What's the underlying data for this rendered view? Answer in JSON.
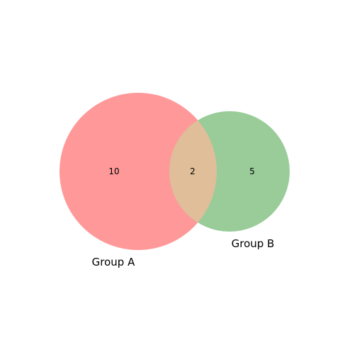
{
  "diagram": {
    "type": "venn2",
    "sets": [
      {
        "label": "Group A",
        "color": "#ff9999"
      },
      {
        "label": "Group B",
        "color": "#99cc99"
      }
    ],
    "overlap_color": "#dfbe99",
    "regions": {
      "a_only": "10",
      "intersection": "2",
      "b_only": "5"
    }
  }
}
